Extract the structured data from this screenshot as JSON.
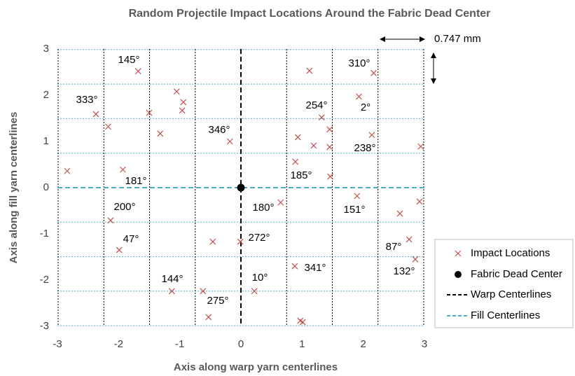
{
  "chart_data": {
    "type": "scatter",
    "title": "Random Projectile Impact Locations Around the Fabric Dead Center",
    "x_label": "Axis along warp yarn centerlines",
    "y_label": "Axis along fill yarn centerlines",
    "xlim": [
      -3,
      3
    ],
    "ylim": [
      -3,
      3
    ],
    "xticks": [
      -3,
      -2,
      -1,
      0,
      1,
      2,
      3
    ],
    "yticks": [
      -3,
      -2,
      -1,
      0,
      1,
      2,
      3
    ],
    "spacing_label": "0.747 mm",
    "series": [
      {
        "name": "Impact Locations",
        "color": "#c0504d",
        "marker": "x",
        "x": [
          -2.84,
          -2.37,
          -2.17,
          -1.93,
          -1.68,
          -2.13,
          -1.99,
          -1.5,
          -1.32,
          -1.05,
          -0.94,
          -0.96,
          -1.13,
          -0.62,
          -0.53,
          -0.46,
          -0.18,
          -0.01,
          0.22,
          0.65,
          0.89,
          0.93,
          1.12,
          1.19,
          1.32,
          1.45,
          1.45,
          1.46,
          0.88,
          0.97,
          1.01,
          1.9,
          1.93,
          2.14,
          2.17,
          2.6,
          2.75,
          2.85,
          2.92,
          2.94
        ],
        "values": [
          0.36,
          1.59,
          1.32,
          0.39,
          2.52,
          -0.71,
          -1.35,
          1.62,
          1.17,
          2.08,
          1.85,
          1.67,
          -2.24,
          -2.24,
          -2.8,
          -1.17,
          1.0,
          -1.17,
          -2.24,
          -0.32,
          0.56,
          1.09,
          2.53,
          0.91,
          1.52,
          1.26,
          0.88,
          0.24,
          -1.7,
          -2.88,
          -2.91,
          -0.18,
          1.97,
          1.14,
          2.48,
          -0.56,
          -1.12,
          -1.55,
          -0.3,
          0.89
        ]
      },
      {
        "name": "Fabric Dead Center",
        "color": "#000000",
        "marker": "dot",
        "x": [
          0
        ],
        "values": [
          0
        ]
      }
    ],
    "warp_lines": {
      "name": "Warp Centerlines",
      "color": "#000000",
      "center": 0,
      "x": [
        -2.988,
        -2.241,
        -1.494,
        -0.747,
        0.747,
        1.494,
        2.241,
        2.988
      ]
    },
    "fill_lines": {
      "name": "Fill Centerlines",
      "color": "#4bacc6",
      "center": 0,
      "y": [
        -2.988,
        -2.241,
        -1.494,
        -0.747,
        0.747,
        1.494,
        2.241,
        2.988
      ]
    },
    "annotations": [
      "145°",
      "333°",
      "181°",
      "200°",
      "47°",
      "144°",
      "275°",
      "346°",
      "180°",
      "272°",
      "10°",
      "254°",
      "185°",
      "341°",
      "310°",
      "2°",
      "238°",
      "151°",
      "87°",
      "132°"
    ]
  }
}
